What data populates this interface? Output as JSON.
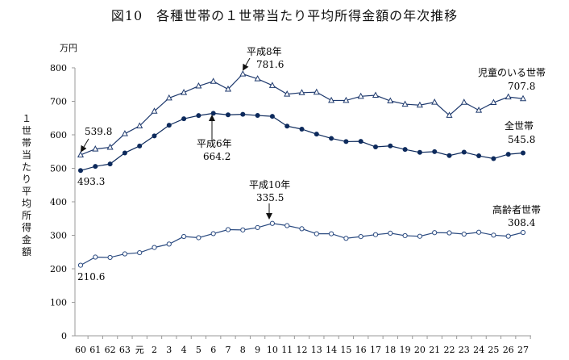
{
  "chart_data": {
    "type": "line",
    "title": "図10　各種世帯の１世帯当たり平均所得金額の年次推移",
    "ylabel": "１世帯当たり平均所得金額",
    "unit": "万円",
    "xlabel": "",
    "categories": [
      "60",
      "61",
      "62",
      "63",
      "元",
      "2",
      "3",
      "4",
      "5",
      "6",
      "7",
      "8",
      "9",
      "10",
      "11",
      "12",
      "13",
      "14",
      "15",
      "16",
      "17",
      "18",
      "19",
      "20",
      "21",
      "22",
      "23",
      "24",
      "25",
      "26",
      "27"
    ],
    "yticks": [
      "0",
      "100",
      "200",
      "300",
      "400",
      "500",
      "600",
      "700",
      "800"
    ],
    "ylim": [
      0,
      800
    ],
    "grid": false,
    "series": [
      {
        "name": "児童のいる世帯",
        "marker": "triangle-open",
        "color": "#1f3a6e",
        "values": [
          539.8,
          557.6,
          562.7,
          603.2,
          626.4,
          670.4,
          709.8,
          726.3,
          745.7,
          759.5,
          736.2,
          781.6,
          767.1,
          747.4,
          721.4,
          725.8,
          727.2,
          702.7,
          702.6,
          714.9,
          718.0,
          701.2,
          691.4,
          688.5,
          697.3,
          658.1,
          697.0,
          673.2,
          696.3,
          712.9,
          707.8
        ]
      },
      {
        "name": "全世帯",
        "marker": "circle-filled",
        "color": "#0d2a5c",
        "values": [
          493.3,
          505.6,
          512.9,
          545.9,
          566.7,
          596.6,
          628.6,
          647.8,
          657.5,
          664.2,
          659.6,
          661.2,
          657.7,
          655.2,
          626.0,
          616.9,
          602.0,
          589.3,
          579.7,
          580.4,
          563.8,
          566.8,
          556.2,
          547.5,
          549.6,
          538.0,
          548.2,
          537.2,
          528.9,
          541.9,
          545.8
        ]
      },
      {
        "name": "高齢者世帯",
        "marker": "circle-open",
        "color": "#2a4a80",
        "values": [
          210.6,
          234.9,
          233.9,
          244.5,
          248.0,
          263.6,
          273.8,
          296.3,
          292.8,
          305.0,
          316.9,
          316.0,
          323.1,
          335.5,
          328.9,
          319.5,
          304.6,
          304.6,
          290.9,
          296.1,
          301.9,
          306.3,
          298.9,
          297.0,
          307.9,
          307.2,
          303.6,
          309.1,
          300.5,
          297.3,
          308.4
        ]
      }
    ],
    "annotations": {
      "child_start": "539.8",
      "child_peak_label": "平成8年",
      "child_peak": "781.6",
      "child_end": "707.8",
      "all_start": "493.3",
      "all_peak_label": "平成6年",
      "all_peak": "664.2",
      "all_end": "545.8",
      "elder_start": "210.6",
      "elder_peak_label": "平成10年",
      "elder_peak": "335.5",
      "elder_end": "308.4"
    }
  }
}
